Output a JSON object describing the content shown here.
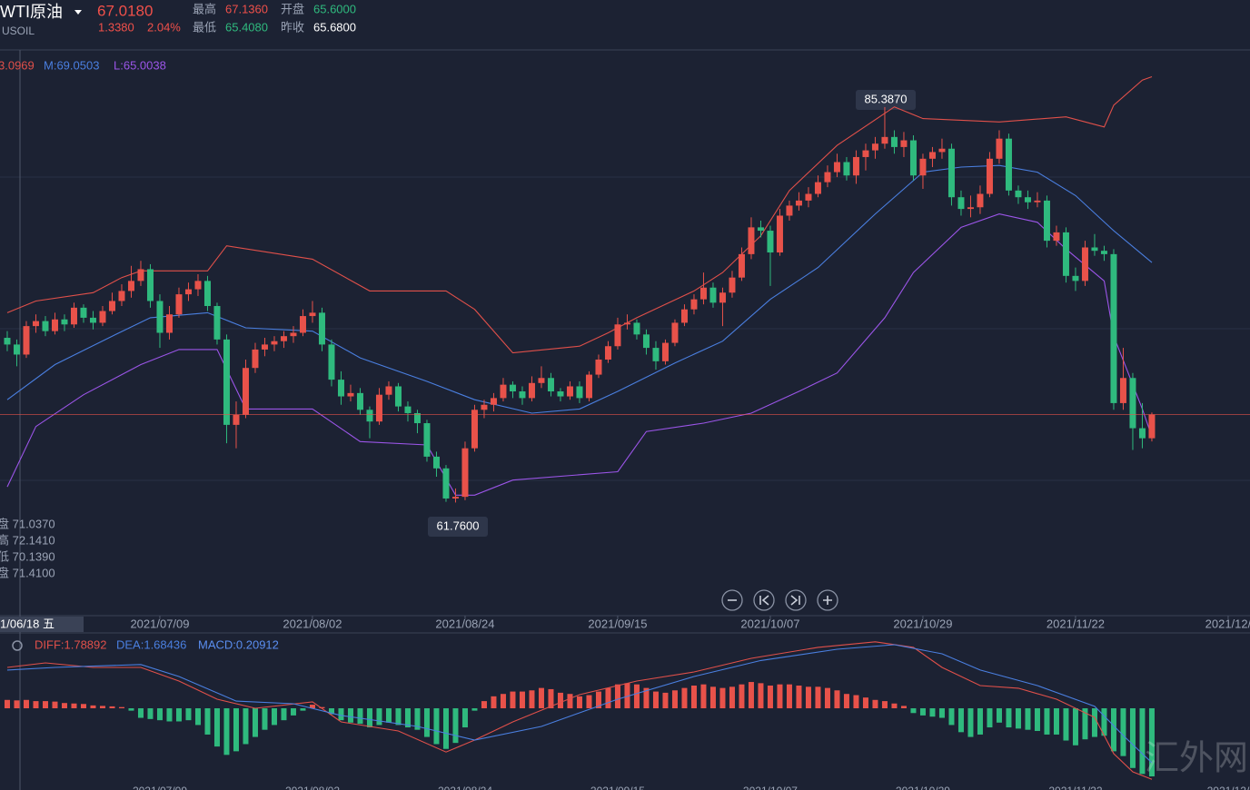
{
  "header": {
    "symbol": "WTI原油",
    "price": "67.0180",
    "change": "1.3380",
    "change_pct": "2.04%",
    "code": "USOIL",
    "high_label": "最高",
    "high": "67.1360",
    "open_label": "开盘",
    "open": "65.6000",
    "low_label": "最低",
    "low": "65.4080",
    "prev_label": "昨收",
    "prev": "65.6800"
  },
  "chart_data": [
    {
      "type": "candlestick",
      "up_color": "#e8524a",
      "down_color": "#2fba7e",
      "xlim": [
        -0.76,
        130.29
      ],
      "ylim": [
        55,
        88.8
      ],
      "xticks": [
        {
          "value": 16,
          "label": "2021/07/09"
        },
        {
          "value": 32,
          "label": "2021/08/02"
        },
        {
          "value": 48,
          "label": "2021/08/24"
        },
        {
          "value": 64,
          "label": "2021/09/15"
        },
        {
          "value": 80,
          "label": "2021/10/07"
        },
        {
          "value": 96,
          "label": "2021/10/29"
        },
        {
          "value": 112,
          "label": "2021/11/22"
        },
        {
          "value": 128,
          "label": "2021/12/"
        }
      ],
      "crosshair_date": "1/06/18 五",
      "ohlc_labels": [
        "盘 71.0370",
        "高 72.1410",
        "低 70.1390",
        "盘 71.4100"
      ],
      "annotations": [
        "85.3870",
        "61.7600"
      ],
      "candles": [
        [
          71.6,
          72.0,
          70.8,
          71.2
        ],
        [
          71.2,
          71.5,
          69.9,
          70.6
        ],
        [
          70.6,
          72.6,
          70.4,
          72.3
        ],
        [
          72.3,
          73.0,
          71.9,
          72.6
        ],
        [
          72.6,
          72.9,
          71.7,
          72.0
        ],
        [
          72.0,
          73.1,
          71.8,
          72.7
        ],
        [
          72.7,
          73.0,
          72.0,
          72.4
        ],
        [
          72.4,
          73.7,
          72.2,
          73.4
        ],
        [
          73.4,
          73.6,
          72.5,
          72.8
        ],
        [
          72.8,
          73.2,
          72.1,
          72.5
        ],
        [
          72.5,
          73.5,
          72.3,
          73.2
        ],
        [
          73.2,
          74.3,
          73.0,
          73.8
        ],
        [
          73.8,
          74.8,
          73.5,
          74.4
        ],
        [
          74.4,
          75.9,
          74.0,
          75.0
        ],
        [
          75.0,
          76.2,
          74.7,
          75.7
        ],
        [
          75.7,
          76.0,
          73.4,
          73.8
        ],
        [
          73.8,
          74.2,
          71.0,
          71.9
        ],
        [
          71.9,
          73.5,
          71.5,
          73.0
        ],
        [
          73.0,
          74.6,
          72.8,
          74.2
        ],
        [
          74.2,
          74.9,
          73.8,
          74.5
        ],
        [
          74.5,
          75.4,
          74.1,
          75.0
        ],
        [
          75.0,
          75.3,
          73.2,
          73.5
        ],
        [
          73.5,
          73.7,
          71.2,
          71.5
        ],
        [
          71.5,
          71.8,
          65.3,
          66.4
        ],
        [
          66.4,
          67.8,
          65.0,
          67.0
        ],
        [
          67.0,
          70.3,
          66.8,
          69.8
        ],
        [
          69.8,
          71.3,
          69.5,
          70.9
        ],
        [
          70.9,
          71.6,
          70.5,
          71.2
        ],
        [
          71.2,
          71.7,
          70.8,
          71.4
        ],
        [
          71.4,
          72.0,
          71.0,
          71.7
        ],
        [
          71.7,
          72.3,
          71.3,
          71.9
        ],
        [
          71.9,
          73.3,
          71.7,
          72.9
        ],
        [
          72.9,
          73.8,
          72.5,
          73.1
        ],
        [
          73.1,
          73.4,
          70.8,
          71.2
        ],
        [
          71.2,
          71.5,
          68.7,
          69.1
        ],
        [
          69.1,
          69.6,
          67.6,
          68.1
        ],
        [
          68.1,
          68.8,
          67.8,
          68.3
        ],
        [
          68.3,
          68.6,
          67.0,
          67.3
        ],
        [
          67.3,
          67.5,
          65.6,
          66.6
        ],
        [
          66.6,
          68.6,
          66.4,
          68.2
        ],
        [
          68.2,
          69.0,
          67.9,
          68.7
        ],
        [
          68.7,
          68.9,
          67.2,
          67.5
        ],
        [
          67.5,
          67.8,
          66.6,
          67.1
        ],
        [
          67.1,
          67.3,
          65.9,
          66.5
        ],
        [
          66.5,
          66.7,
          64.2,
          64.5
        ],
        [
          64.5,
          64.8,
          63.3,
          63.8
        ],
        [
          63.8,
          64.0,
          61.8,
          62.0
        ],
        [
          62.0,
          62.6,
          61.76,
          62.1
        ],
        [
          62.1,
          65.4,
          61.9,
          65.0
        ],
        [
          65.0,
          67.6,
          64.8,
          67.3
        ],
        [
          67.3,
          67.9,
          66.8,
          67.6
        ],
        [
          67.6,
          68.3,
          67.2,
          68.0
        ],
        [
          68.0,
          69.2,
          67.8,
          68.8
        ],
        [
          68.8,
          69.0,
          68.0,
          68.4
        ],
        [
          68.4,
          68.7,
          67.6,
          68.0
        ],
        [
          68.0,
          69.3,
          67.8,
          68.9
        ],
        [
          68.9,
          69.9,
          68.6,
          69.2
        ],
        [
          69.2,
          69.5,
          68.1,
          68.4
        ],
        [
          68.4,
          68.6,
          67.8,
          68.1
        ],
        [
          68.1,
          69.0,
          67.9,
          68.7
        ],
        [
          68.7,
          69.0,
          67.7,
          68.0
        ],
        [
          68.0,
          69.6,
          67.8,
          69.4
        ],
        [
          69.4,
          70.6,
          69.2,
          70.3
        ],
        [
          70.3,
          71.4,
          70.1,
          71.1
        ],
        [
          71.1,
          72.8,
          70.9,
          72.4
        ],
        [
          72.4,
          73.0,
          72.1,
          72.5
        ],
        [
          72.5,
          72.7,
          71.5,
          71.8
        ],
        [
          71.8,
          72.1,
          70.6,
          71.0
        ],
        [
          71.0,
          71.4,
          69.7,
          70.2
        ],
        [
          70.2,
          71.5,
          70.0,
          71.3
        ],
        [
          71.3,
          72.7,
          71.1,
          72.5
        ],
        [
          72.5,
          73.6,
          72.3,
          73.3
        ],
        [
          73.3,
          74.2,
          73.0,
          73.9
        ],
        [
          73.9,
          75.5,
          73.6,
          74.6
        ],
        [
          74.6,
          74.9,
          73.4,
          73.7
        ],
        [
          73.7,
          74.6,
          72.3,
          74.3
        ],
        [
          74.3,
          75.6,
          74.0,
          75.2
        ],
        [
          75.2,
          77.0,
          75.0,
          76.6
        ],
        [
          76.6,
          78.8,
          76.3,
          78.2
        ],
        [
          78.2,
          78.6,
          77.6,
          78.0
        ],
        [
          78.0,
          78.3,
          74.7,
          76.7
        ],
        [
          76.7,
          79.3,
          76.5,
          78.9
        ],
        [
          78.9,
          79.8,
          78.6,
          79.5
        ],
        [
          79.5,
          80.3,
          79.2,
          79.8
        ],
        [
          79.8,
          80.6,
          79.4,
          80.2
        ],
        [
          80.2,
          81.3,
          80.0,
          80.9
        ],
        [
          80.9,
          81.9,
          80.6,
          81.5
        ],
        [
          81.5,
          82.6,
          81.2,
          82.1
        ],
        [
          82.1,
          82.4,
          81.0,
          81.3
        ],
        [
          81.3,
          82.8,
          80.8,
          82.4
        ],
        [
          82.4,
          83.2,
          81.6,
          82.8
        ],
        [
          82.8,
          83.6,
          82.3,
          83.2
        ],
        [
          83.2,
          85.387,
          82.9,
          83.6
        ],
        [
          83.6,
          84.0,
          82.6,
          83.0
        ],
        [
          83.0,
          83.9,
          82.4,
          83.4
        ],
        [
          83.4,
          83.7,
          81.0,
          81.3
        ],
        [
          81.3,
          82.6,
          80.5,
          82.3
        ],
        [
          82.3,
          83.0,
          81.8,
          82.7
        ],
        [
          82.7,
          83.5,
          82.3,
          82.9
        ],
        [
          82.9,
          83.2,
          79.5,
          80.0
        ],
        [
          80.0,
          80.4,
          78.9,
          79.3
        ],
        [
          79.3,
          80.1,
          78.8,
          79.4
        ],
        [
          79.4,
          80.7,
          79.0,
          80.2
        ],
        [
          80.2,
          82.7,
          80.0,
          82.3
        ],
        [
          82.3,
          84.0,
          82.0,
          83.5
        ],
        [
          83.5,
          83.8,
          80.1,
          80.4
        ],
        [
          80.4,
          80.7,
          79.6,
          80.0
        ],
        [
          80.0,
          80.4,
          79.3,
          79.7
        ],
        [
          79.7,
          80.3,
          79.4,
          79.8
        ],
        [
          79.8,
          80.1,
          77.0,
          77.4
        ],
        [
          77.4,
          78.3,
          77.1,
          77.9
        ],
        [
          77.9,
          78.2,
          74.9,
          75.3
        ],
        [
          75.3,
          75.8,
          74.4,
          75.0
        ],
        [
          75.0,
          77.4,
          74.7,
          77.0
        ],
        [
          77.0,
          77.8,
          76.5,
          76.8
        ],
        [
          76.8,
          77.1,
          76.2,
          76.6
        ],
        [
          76.6,
          76.9,
          67.3,
          67.7
        ],
        [
          67.7,
          71.0,
          67.3,
          69.2
        ],
        [
          69.2,
          69.5,
          64.9,
          66.2
        ],
        [
          66.2,
          67.7,
          65.0,
          65.6
        ],
        [
          65.6,
          67.136,
          65.408,
          67.018
        ]
      ],
      "series": [
        {
          "name": "3.0969",
          "color": "#e0504a",
          "x": [
            0,
            3,
            9,
            12,
            14,
            21,
            23,
            32,
            38,
            46,
            49,
            53,
            60,
            63,
            66,
            72,
            75,
            79,
            82,
            87,
            93,
            96,
            104,
            111,
            115,
            116,
            119,
            120
          ],
          "values": [
            73.1,
            73.8,
            74.3,
            75.2,
            75.6,
            75.6,
            77.1,
            76.3,
            74.4,
            74.4,
            73.3,
            70.7,
            71.1,
            71.9,
            72.8,
            74.4,
            75.5,
            77.7,
            80.4,
            83.1,
            85.4,
            84.7,
            84.5,
            84.8,
            84.2,
            85.5,
            87.0,
            87.2
          ]
        },
        {
          "name": "M:69.0503",
          "color": "#4a7fe0",
          "x": [
            0,
            5,
            11,
            15,
            21,
            25,
            32,
            37,
            44,
            49,
            55,
            60,
            64,
            70,
            75,
            80,
            85,
            91,
            96,
            100,
            104,
            108,
            112,
            116,
            120
          ],
          "values": [
            67.9,
            70.0,
            71.7,
            72.8,
            73.1,
            72.2,
            72.0,
            70.4,
            69.0,
            67.9,
            67.1,
            67.35,
            68.4,
            70.1,
            71.4,
            73.9,
            75.8,
            79.0,
            81.5,
            81.8,
            81.9,
            81.5,
            80.1,
            78.0,
            76.1
          ]
        },
        {
          "name": "L:65.0038",
          "color": "#9b55e8",
          "x": [
            0,
            3,
            8,
            14,
            18,
            22,
            25,
            32,
            37,
            44,
            47,
            49,
            53,
            64,
            67,
            73,
            78,
            83,
            87,
            92,
            95,
            100,
            104,
            108,
            111,
            115,
            116,
            119,
            120
          ],
          "values": [
            62.7,
            66.3,
            68.2,
            70.0,
            70.9,
            70.9,
            67.35,
            67.35,
            65.4,
            65.2,
            62.2,
            62.2,
            63.1,
            63.6,
            66.0,
            66.5,
            67.1,
            68.4,
            69.5,
            72.8,
            75.5,
            78.2,
            79.0,
            78.5,
            76.9,
            75.0,
            71.7,
            67.35,
            65.7
          ]
        }
      ]
    },
    {
      "type": "macd",
      "up_color": "#e8524a",
      "down_color": "#2fba7e",
      "xlim": [
        -0.76,
        130.29
      ],
      "ylim": [
        -3.42,
        3.04
      ],
      "macd_label": "MACD:0.20912",
      "macd_color": "#5a8ef0",
      "histogram": [
        0.35,
        0.33,
        0.35,
        0.3,
        0.3,
        0.28,
        0.22,
        0.2,
        0.18,
        0.12,
        0.1,
        0.08,
        0.05,
        -0.1,
        -0.4,
        -0.45,
        -0.5,
        -0.55,
        -0.55,
        -0.5,
        -0.7,
        -1.1,
        -1.6,
        -1.95,
        -1.8,
        -1.5,
        -1.2,
        -0.9,
        -0.7,
        -0.5,
        -0.3,
        -0.1,
        0.15,
        0.05,
        -0.25,
        -0.5,
        -0.6,
        -0.65,
        -0.8,
        -0.7,
        -0.6,
        -0.7,
        -0.8,
        -0.9,
        -1.2,
        -1.5,
        -1.7,
        -1.45,
        -0.8,
        -0.1,
        0.3,
        0.5,
        0.6,
        0.7,
        0.7,
        0.75,
        0.85,
        0.8,
        0.65,
        0.6,
        0.5,
        0.55,
        0.7,
        0.85,
        1.0,
        1.05,
        1.0,
        0.85,
        0.7,
        0.65,
        0.75,
        0.85,
        0.95,
        1.0,
        0.9,
        0.85,
        0.9,
        1.0,
        1.1,
        1.05,
        0.95,
        1.0,
        1.0,
        0.95,
        0.9,
        0.9,
        0.85,
        0.75,
        0.6,
        0.55,
        0.45,
        0.35,
        0.3,
        0.2,
        0.1,
        -0.2,
        -0.3,
        -0.35,
        -0.4,
        -0.7,
        -1.0,
        -1.2,
        -1.1,
        -0.8,
        -0.6,
        -0.8,
        -0.85,
        -0.9,
        -0.95,
        -1.1,
        -1.1,
        -1.35,
        -1.55,
        -1.3,
        -1.2,
        -1.15,
        -1.8,
        -2.0,
        -2.5,
        -2.75,
        -2.85
      ],
      "series": [
        {
          "name": "DIFF:1.78892",
          "color": "#e0504a",
          "x": [
            0,
            4,
            9,
            14,
            18,
            22,
            26,
            32,
            35,
            41,
            46,
            49,
            53,
            60,
            66,
            72,
            78,
            85,
            91,
            95,
            98,
            102,
            106,
            110,
            114,
            116,
            118,
            120
          ],
          "values": [
            1.71,
            1.9,
            1.71,
            1.71,
            1.14,
            0.38,
            0,
            0.27,
            -0.57,
            -0.95,
            -1.83,
            -1.33,
            -0.57,
            0.57,
            1.14,
            1.52,
            2.09,
            2.55,
            2.78,
            2.55,
            1.71,
            0.95,
            0.84,
            0.38,
            -0.38,
            -1.9,
            -2.66,
            -2.97
          ]
        },
        {
          "name": "DEA:1.68436",
          "color": "#4a7fe0",
          "x": [
            0,
            5,
            14,
            18,
            24,
            30,
            35,
            43,
            49,
            56,
            64,
            72,
            79,
            87,
            93,
            98,
            102,
            108,
            114,
            117,
            120
          ],
          "values": [
            1.6,
            1.71,
            1.83,
            1.33,
            0.3,
            0.19,
            -0.3,
            -0.76,
            -1.33,
            -0.76,
            0.38,
            1.33,
            2.0,
            2.47,
            2.66,
            2.28,
            1.6,
            0.95,
            0.08,
            -1.14,
            -2.28
          ]
        }
      ]
    }
  ],
  "watermark": "汇外网"
}
